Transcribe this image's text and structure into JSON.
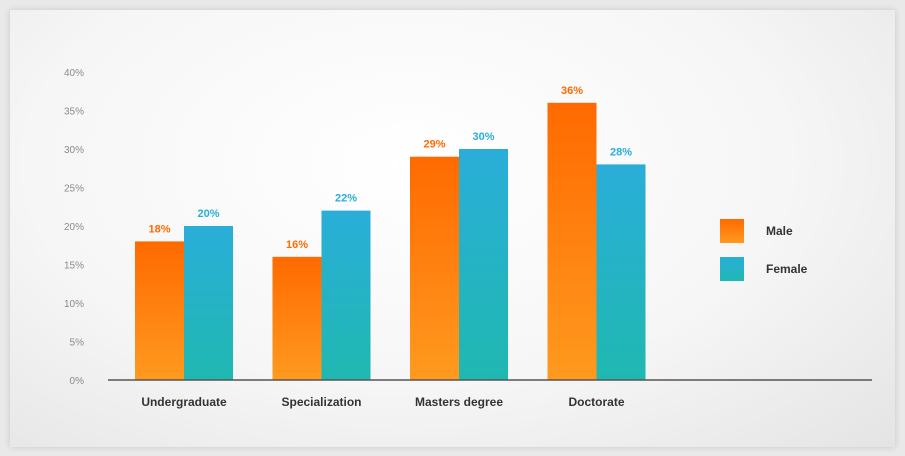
{
  "colors": {
    "male_top": "#ff6a00",
    "male_bottom": "#ff9a1f",
    "female_top": "#2aaed9",
    "female_bottom": "#1fb8b0",
    "male_label": "#ff6a00",
    "female_label": "#2aaed9"
  },
  "chart_data": {
    "type": "bar",
    "categories": [
      "Undergraduate",
      "Specialization",
      "Masters degree",
      "Doctorate"
    ],
    "series": [
      {
        "name": "Male",
        "values": [
          18,
          16,
          29,
          36
        ],
        "labels": [
          "18%",
          "16%",
          "29%",
          "36%"
        ]
      },
      {
        "name": "Female",
        "values": [
          20,
          22,
          30,
          28
        ],
        "labels": [
          "20%",
          "22%",
          "30%",
          "28%"
        ]
      }
    ],
    "ylim": [
      0,
      40
    ],
    "yticks": [
      "0%",
      "5%",
      "10%",
      "15%",
      "20%",
      "25%",
      "30%",
      "35%",
      "40%"
    ],
    "grid": false,
    "legend_position": "right"
  }
}
